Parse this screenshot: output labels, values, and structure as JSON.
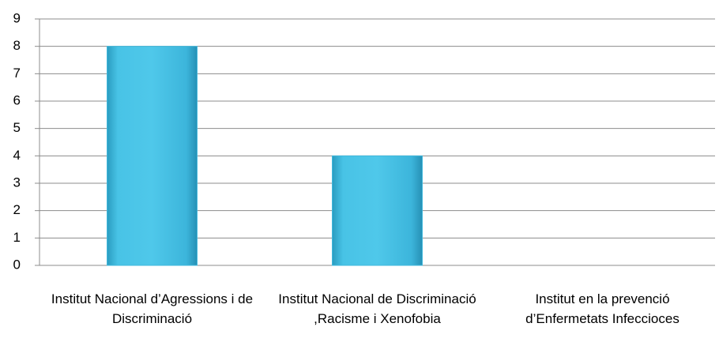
{
  "chart_data": {
    "type": "bar",
    "categories": [
      "Institut Nacional d’Agressions i de Discriminació",
      "Institut Nacional de Discriminació ,Racisme i Xenofobia",
      "Institut en la prevenció d’Enfermetats Infeccioces"
    ],
    "values": [
      8,
      4,
      0
    ],
    "color": "#40b8dc",
    "ylim": [
      0,
      9
    ],
    "yticks": [
      0,
      1,
      2,
      3,
      4,
      5,
      6,
      7,
      8,
      9
    ],
    "grid": true
  }
}
